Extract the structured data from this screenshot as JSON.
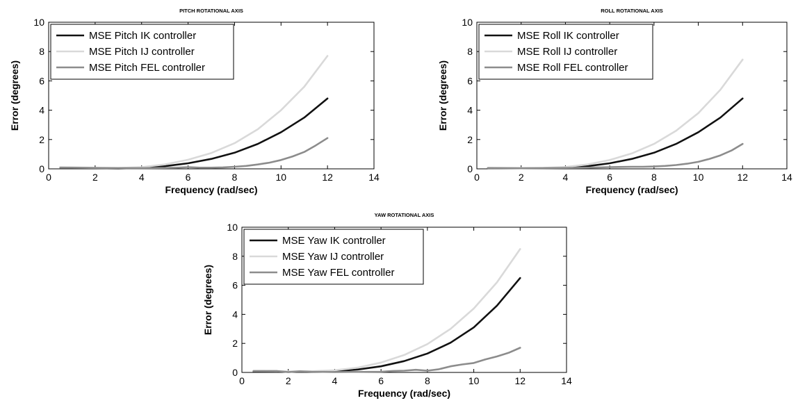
{
  "chart_data": [
    {
      "type": "line",
      "title": "PITCH ROTATIONAL AXIS",
      "xlabel": "Frequency (rad/sec)",
      "ylabel": "Error (degrees)",
      "xlim": [
        0,
        14
      ],
      "ylim": [
        0,
        10
      ],
      "xticks": [
        "0",
        "2",
        "4",
        "6",
        "8",
        "10",
        "12",
        "14"
      ],
      "yticks": [
        "0",
        "2",
        "4",
        "6",
        "8",
        "10"
      ],
      "legend_position": "top-left",
      "grid": false,
      "series": [
        {
          "name": "MSE Pitch IK controller",
          "color": "#111111",
          "width": 2.6,
          "x": [
            0.5,
            1,
            2,
            3,
            4,
            5,
            6,
            7,
            8,
            9,
            10,
            11,
            12
          ],
          "y": [
            0.1,
            0.08,
            0.05,
            0.03,
            0.06,
            0.18,
            0.38,
            0.68,
            1.1,
            1.7,
            2.5,
            3.5,
            4.8
          ]
        },
        {
          "name": "MSE Pitch IJ controller",
          "color": "#d9d9d9",
          "width": 2.6,
          "x": [
            0.5,
            1,
            2,
            3,
            4,
            5,
            6,
            7,
            8,
            9,
            10,
            11,
            12
          ],
          "y": [
            0.12,
            0.1,
            0.07,
            0.06,
            0.12,
            0.3,
            0.62,
            1.08,
            1.75,
            2.7,
            4.0,
            5.6,
            7.7
          ]
        },
        {
          "name": "MSE Pitch FEL controller",
          "color": "#8c8c8c",
          "width": 2.6,
          "x": [
            0.5,
            1,
            2,
            3,
            4,
            5,
            5.5,
            6,
            6.5,
            7,
            7.5,
            8,
            8.5,
            9,
            9.5,
            10,
            10.5,
            11,
            11.5,
            12
          ],
          "y": [
            0.08,
            0.08,
            0.06,
            0.05,
            0.05,
            0.06,
            0.08,
            0.12,
            0.08,
            0.08,
            0.1,
            0.14,
            0.2,
            0.3,
            0.42,
            0.6,
            0.85,
            1.15,
            1.6,
            2.1
          ]
        }
      ]
    },
    {
      "type": "line",
      "title": "ROLL ROTATIONAL AXIS",
      "xlabel": "Frequency (rad/sec)",
      "ylabel": "Error (degrees)",
      "xlim": [
        0,
        14
      ],
      "ylim": [
        0,
        10
      ],
      "xticks": [
        "0",
        "2",
        "4",
        "6",
        "8",
        "10",
        "12",
        "14"
      ],
      "yticks": [
        "0",
        "2",
        "4",
        "6",
        "8",
        "10"
      ],
      "legend_position": "top-left",
      "grid": false,
      "series": [
        {
          "name": "MSE Roll IK controller",
          "color": "#111111",
          "width": 2.6,
          "x": [
            0.5,
            1,
            2,
            3,
            4,
            5,
            6,
            7,
            8,
            9,
            10,
            11,
            12
          ],
          "y": [
            0.06,
            0.05,
            0.04,
            0.04,
            0.07,
            0.18,
            0.38,
            0.68,
            1.1,
            1.7,
            2.5,
            3.5,
            4.8
          ]
        },
        {
          "name": "MSE Roll IJ controller",
          "color": "#d9d9d9",
          "width": 2.6,
          "x": [
            0.5,
            1,
            2,
            3,
            4,
            5,
            6,
            7,
            8,
            9,
            10,
            11,
            12
          ],
          "y": [
            0.08,
            0.07,
            0.06,
            0.07,
            0.13,
            0.3,
            0.6,
            1.05,
            1.7,
            2.6,
            3.8,
            5.4,
            7.45
          ]
        },
        {
          "name": "MSE Roll FEL controller",
          "color": "#8c8c8c",
          "width": 2.6,
          "x": [
            0.5,
            1,
            2,
            3,
            4,
            5,
            6,
            7,
            7.5,
            8,
            8.5,
            9,
            9.5,
            10,
            10.5,
            11,
            11.5,
            12
          ],
          "y": [
            0.05,
            0.05,
            0.04,
            0.05,
            0.06,
            0.08,
            0.12,
            0.14,
            0.14,
            0.16,
            0.2,
            0.26,
            0.35,
            0.48,
            0.68,
            0.92,
            1.25,
            1.7
          ]
        }
      ]
    },
    {
      "type": "line",
      "title": "YAW ROTATIONAL AXIS",
      "xlabel": "Frequency (rad/sec)",
      "ylabel": "Error (degrees)",
      "xlim": [
        0,
        14
      ],
      "ylim": [
        0,
        10
      ],
      "xticks": [
        "0",
        "2",
        "4",
        "6",
        "8",
        "10",
        "12",
        "14"
      ],
      "yticks": [
        "0",
        "2",
        "4",
        "6",
        "8",
        "10"
      ],
      "legend_position": "top-left",
      "grid": false,
      "series": [
        {
          "name": "MSE Yaw IK controller",
          "color": "#111111",
          "width": 2.6,
          "x": [
            0.5,
            1,
            2,
            3,
            4,
            5,
            6,
            7,
            8,
            9,
            10,
            11,
            12
          ],
          "y": [
            0.08,
            0.07,
            0.05,
            0.05,
            0.08,
            0.2,
            0.42,
            0.78,
            1.3,
            2.05,
            3.1,
            4.6,
            6.5
          ]
        },
        {
          "name": "MSE Yaw IJ controller",
          "color": "#d9d9d9",
          "width": 2.6,
          "x": [
            0.5,
            1,
            2,
            3,
            4,
            5,
            6,
            7,
            8,
            9,
            10,
            11,
            12
          ],
          "y": [
            0.1,
            0.09,
            0.07,
            0.08,
            0.15,
            0.33,
            0.68,
            1.2,
            1.95,
            3.0,
            4.4,
            6.2,
            8.5
          ]
        },
        {
          "name": "MSE Yaw FEL controller",
          "color": "#8c8c8c",
          "width": 2.6,
          "x": [
            0.5,
            1,
            1.5,
            2,
            2.5,
            3,
            3.5,
            4,
            5,
            6,
            6.5,
            7,
            7.5,
            8,
            8.5,
            9,
            9.5,
            10,
            10.5,
            11,
            11.5,
            12
          ],
          "y": [
            0.1,
            0.1,
            0.1,
            0.02,
            0.08,
            0.05,
            0.04,
            0.03,
            0.04,
            0.05,
            0.1,
            0.12,
            0.18,
            0.12,
            0.22,
            0.42,
            0.55,
            0.65,
            0.9,
            1.1,
            1.35,
            1.7
          ]
        }
      ]
    }
  ]
}
